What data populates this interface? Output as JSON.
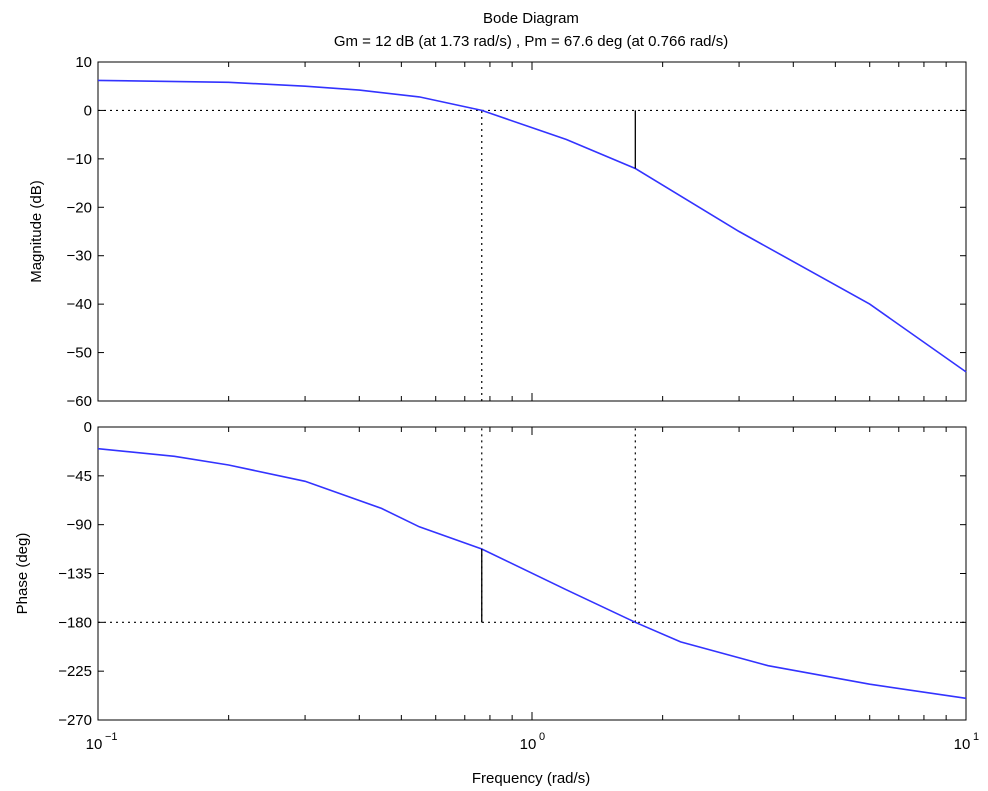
{
  "colors": {
    "curve": "#3333ff",
    "axes": "#000000",
    "background": "#ffffff"
  },
  "chart_data": {
    "type": "line",
    "title": "Bode Diagram",
    "subtitle": "Gm = 12 dB (at 1.73 rad/s) ,  Pm = 67.6 deg (at 0.766 rad/s)",
    "xlabel": "Frequency  (rad/s)",
    "xscale": "log",
    "xlim": [
      0.1,
      10
    ],
    "x_ticks": [
      {
        "base": "10",
        "exp": "−1",
        "value": 0.1
      },
      {
        "base": "10",
        "exp": "0",
        "value": 1
      },
      {
        "base": "10",
        "exp": "1",
        "value": 10
      }
    ],
    "gain_margin": {
      "value_db": 12,
      "frequency": 1.73
    },
    "phase_margin": {
      "value_deg": 67.6,
      "frequency": 0.766
    },
    "panels": [
      {
        "name": "magnitude",
        "ylabel": "Magnitude (dB)",
        "ylim": [
          -60,
          10
        ],
        "yticks": [
          10,
          0,
          -10,
          -20,
          -30,
          -40,
          -50,
          -60
        ],
        "ytick_labels": [
          "10",
          "0",
          "−10",
          "−20",
          "−30",
          "−40",
          "−50",
          "−60"
        ],
        "reference_y": 0,
        "series": [
          {
            "x": [
              0.1,
              0.2,
              0.3,
              0.4,
              0.55,
              0.766,
              1.2,
              1.73,
              3,
              6,
              10
            ],
            "values": [
              6.2,
              5.8,
              5.0,
              4.2,
              2.8,
              0.0,
              -6.0,
              -12.0,
              -25.0,
              -40.0,
              -54.0
            ]
          }
        ],
        "margin_marker": {
          "at": 1.73,
          "from": 0,
          "to": -12.0
        },
        "dotted_verticals": [
          {
            "at": 0.766,
            "from": -60,
            "to": 0
          }
        ]
      },
      {
        "name": "phase",
        "ylabel": "Phase (deg)",
        "ylim": [
          -270,
          0
        ],
        "yticks": [
          0,
          -45,
          -90,
          -135,
          -180,
          -225,
          -270
        ],
        "ytick_labels": [
          "0",
          "−45",
          "−90",
          "−135",
          "−180",
          "−225",
          "−270"
        ],
        "reference_y": -180,
        "series": [
          {
            "x": [
              0.1,
              0.15,
              0.2,
              0.3,
              0.45,
              0.55,
              0.766,
              1.2,
              1.73,
              2.2,
              3.5,
              6,
              10
            ],
            "values": [
              -20,
              -27,
              -35,
              -50,
              -75,
              -92,
              -112.4,
              -150,
              -180,
              -198,
              -220,
              -237,
              -250
            ]
          }
        ],
        "margin_marker": {
          "at": 0.766,
          "from": -180,
          "to": -112.4
        },
        "dotted_verticals": [
          {
            "at": 0.766,
            "from": -180,
            "to": 0
          },
          {
            "at": 1.73,
            "from": -180,
            "to": 0
          }
        ]
      }
    ]
  }
}
